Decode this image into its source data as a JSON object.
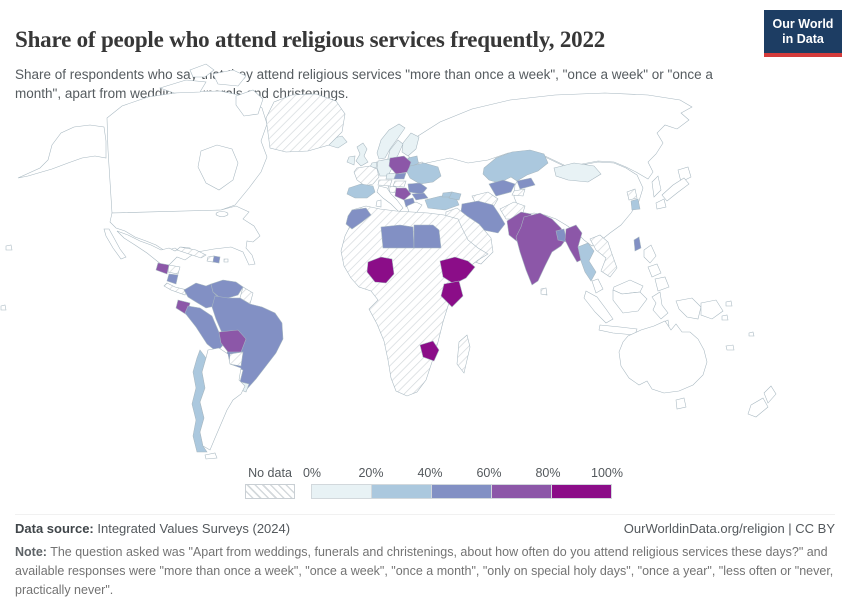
{
  "header": {
    "title": "Share of people who attend religious services frequently, 2022",
    "subtitle": "Share of respondents who say that they attend religious services \"more than once a week\", \"once a week\" or \"once a month\", apart from weddings, funerals and christenings."
  },
  "logo": {
    "line1": "Our World",
    "line2": "in Data"
  },
  "legend": {
    "no_data_label": "No data",
    "ticks": [
      "0%",
      "20%",
      "40%",
      "60%",
      "80%",
      "100%"
    ]
  },
  "footer": {
    "source_label": "Data source:",
    "source_value": " Integrated Values Surveys (2024)",
    "attribution": "OurWorldinData.org/religion | CC BY",
    "note_label": "Note:",
    "note_value": " The question asked was \"Apart from weddings, funerals and christenings, about how often do you attend religious services these days?\" and available responses were \"more than once a week\", \"once a week\", \"once a month\", \"only on special holy days\", \"once a year\", \"less often or \"never, practically never\"."
  },
  "chart_data": {
    "type": "choropleth-map",
    "title": "Share of people who attend religious services frequently, 2022",
    "unit": "share of respondents attending at least monthly",
    "legend_position": "bottom",
    "no_data_style": "hatched",
    "legend_bins": [
      {
        "range": "0-20%",
        "color": "#e8f2f5"
      },
      {
        "range": "20-40%",
        "color": "#abc8de"
      },
      {
        "range": "40-60%",
        "color": "#8290c4"
      },
      {
        "range": "60-80%",
        "color": "#8c57a8"
      },
      {
        "range": "80-100%",
        "color": "#8b0d88"
      }
    ],
    "countries": {
      "Canada": "0-20%",
      "United States": "20-40%",
      "Greenland": "no-data",
      "Mexico": "60-80%",
      "Guatemala": "60-80%",
      "Honduras": "no-data",
      "Nicaragua": "40-60%",
      "Costa Rica & Panama": "no-data",
      "Cuba": "no-data",
      "Haiti": "no-data",
      "Dominican Republic": "40-60%",
      "Puerto Rico": "no-data",
      "Colombia": "40-60%",
      "Venezuela": "40-60%",
      "Guyana & Suriname": "no-data",
      "Ecuador": "60-80%",
      "Peru": "40-60%",
      "Brazil": "40-60%",
      "Bolivia": "60-80%",
      "Paraguay": "no-data",
      "Uruguay": "0-20%",
      "Argentina": "20-40%",
      "Chile": "20-40%",
      "Iceland": "0-20%",
      "United Kingdom": "0-20%",
      "Ireland": "0-20%",
      "Norway": "0-20%",
      "Sweden": "0-20%",
      "Finland": "0-20%",
      "Denmark": "0-20%",
      "Netherlands": "0-20%",
      "Germany": "0-20%",
      "France": "no-data",
      "Spain & Portugal": "20-40%",
      "Italy": "20-40%",
      "Switzerland & Austria": "no-data",
      "Czechia": "0-20%",
      "Poland": "60-80%",
      "Slovakia": "40-60%",
      "Hungary": "no-data",
      "Baltic states": "20-40%",
      "Belarus": "no-data",
      "Ukraine": "20-40%",
      "Romania": "40-60%",
      "Croatia & Slovenia": "no-data",
      "Serbia & Bosnia": "60-80%",
      "Albania & North Macedonia": "40-60%",
      "Bulgaria": "40-60%",
      "Greece": "20-40%",
      "Russia": "0-20%",
      "Turkey": "20-40%",
      "Georgia": "20-40%",
      "Azerbaijan & Armenia": "20-40%",
      "Kazakhstan": "20-40%",
      "Uzbekistan": "40-60%",
      "Turkmenistan": "no-data",
      "Kyrgyzstan": "40-60%",
      "Tajikistan": "no-data",
      "Afghanistan": "no-data",
      "Iran": "40-60%",
      "Iraq": "40-60%",
      "Arabian Peninsula": "no-data",
      "Africa (most countries)": "no-data",
      "Morocco": "40-60%",
      "Libya": "40-60%",
      "Egypt": "40-60%",
      "Nigeria": "80-100%",
      "Ethiopia": "80-100%",
      "Kenya": "80-100%",
      "Zimbabwe": "80-100%",
      "Madagascar": "no-data",
      "Pakistan": "60-80%",
      "India": "60-80%",
      "Sri Lanka": "no-data",
      "Bangladesh": "40-60%",
      "Myanmar": "60-80%",
      "Thailand": "20-40%",
      "Vietnam, Laos & Cambodia": "no-data",
      "Malaysia": "60-80%",
      "Indonesia": "60-80%",
      "Papua New Guinea": "no-data",
      "Philippines": "80-100%",
      "Taiwan": "40-60%",
      "China": "0-20%",
      "Mongolia": "0-20%",
      "North Korea": "no-data",
      "South Korea": "20-40%",
      "Japan": "0-20%",
      "Australia": "0-20%",
      "New Zealand": "0-20%",
      "Pacific islands": "no-data"
    }
  }
}
